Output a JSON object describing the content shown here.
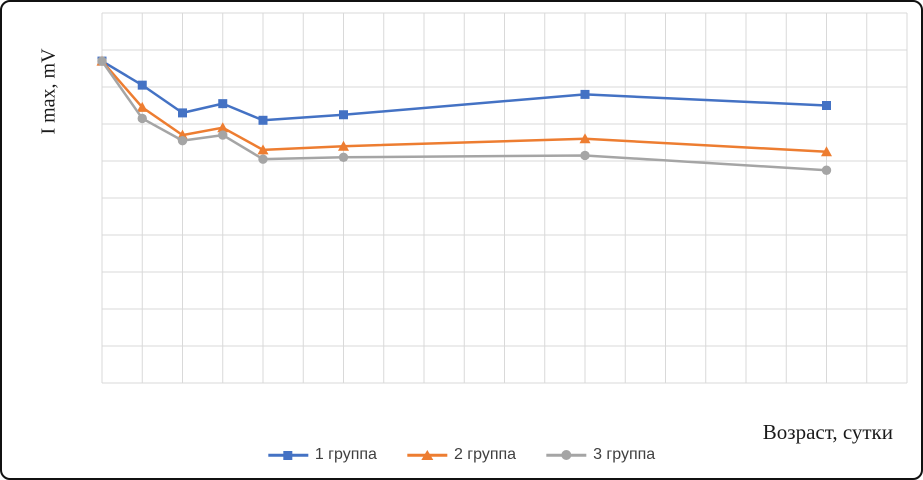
{
  "chart_data": {
    "type": "line",
    "title": "",
    "xlabel": "Возраст, сутки",
    "ylabel": "I max, mV",
    "x": [
      0,
      1,
      2,
      3,
      4,
      6,
      12,
      18
    ],
    "series": [
      {
        "name": "1 группа",
        "color": "#4472C4",
        "marker": "square",
        "values": [
          8.7,
          8.05,
          7.3,
          7.55,
          7.1,
          7.25,
          7.8,
          7.5
        ]
      },
      {
        "name": "2 группа",
        "color": "#ED7D31",
        "marker": "triangle",
        "values": [
          8.7,
          7.45,
          6.7,
          6.9,
          6.3,
          6.4,
          6.6,
          6.25
        ]
      },
      {
        "name": "3 группа",
        "color": "#A5A5A5",
        "marker": "circle",
        "values": [
          8.7,
          7.15,
          6.55,
          6.7,
          6.05,
          6.1,
          6.15,
          5.75
        ]
      }
    ],
    "xlim": [
      0,
      20
    ],
    "ylim": [
      0,
      10
    ],
    "grid": true,
    "grid_color": "#d9d9d9",
    "legend_position": "bottom",
    "axis_tick_labels_visible": false
  }
}
